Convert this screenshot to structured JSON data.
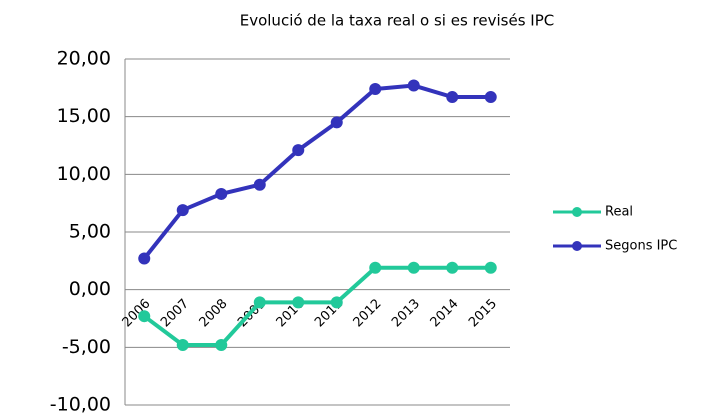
{
  "chart_data": {
    "type": "line",
    "title": "Evolució de la taxa real o si es revisés IPC",
    "categories": [
      "2006",
      "2007",
      "2008",
      "2009",
      "2010",
      "2011",
      "2012",
      "2013",
      "2014",
      "2015"
    ],
    "series": [
      {
        "name": "Real",
        "color": "#22c99a",
        "values": [
          -2.3,
          -4.8,
          -4.8,
          -1.1,
          -1.1,
          -1.1,
          1.9,
          1.9,
          1.9,
          1.9
        ]
      },
      {
        "name": "Segons IPC",
        "color": "#3333bb",
        "values": [
          2.7,
          6.9,
          8.3,
          9.1,
          12.1,
          14.5,
          17.4,
          17.7,
          16.7,
          16.7
        ]
      }
    ],
    "ylim": [
      -10,
      20
    ],
    "yticks": [
      {
        "value": -10,
        "label": "-10,00"
      },
      {
        "value": -5,
        "label": "-5,00"
      },
      {
        "value": 0,
        "label": "0,00"
      },
      {
        "value": 5,
        "label": "5,00"
      },
      {
        "value": 10,
        "label": "10,00"
      },
      {
        "value": 15,
        "label": "15,00"
      },
      {
        "value": 20,
        "label": "20,00"
      }
    ],
    "grid": true,
    "legend": "right"
  }
}
